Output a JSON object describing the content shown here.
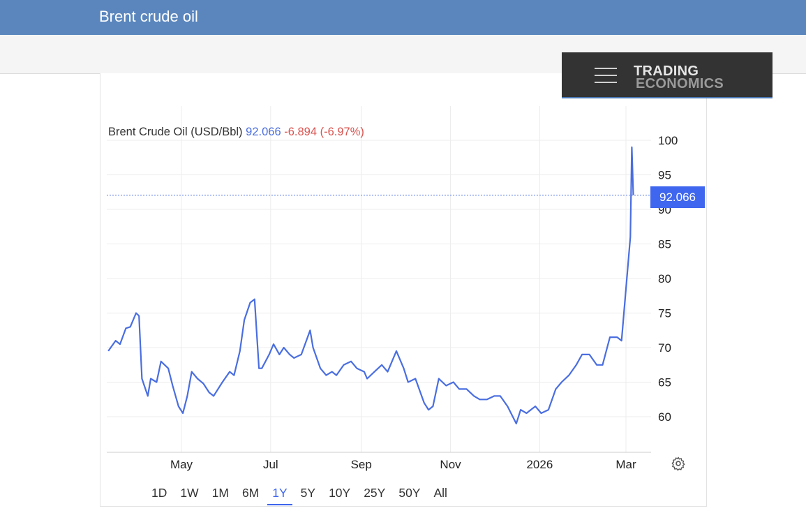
{
  "header": {
    "title": "Brent crude oil"
  },
  "logo": {
    "line1": "TRADING",
    "line2": "ECONOMICS"
  },
  "legend": {
    "name": "Brent Crude Oil (USD/Bbl)",
    "value": "92.066",
    "change": "-6.894 (-6.97%)"
  },
  "price_label": "92.066",
  "range_buttons": [
    "1D",
    "1W",
    "1M",
    "6M",
    "1Y",
    "5Y",
    "10Y",
    "25Y",
    "50Y",
    "All"
  ],
  "active_range": "1Y",
  "colors": {
    "line": "#4a6ee0",
    "accent": "#3f66ee",
    "change": "#d9534f",
    "header": "#5a86bd"
  },
  "chart_data": {
    "type": "line",
    "title": "Brent Crude Oil (USD/Bbl)",
    "xlabel": "",
    "ylabel": "",
    "x_ticks": [
      "May",
      "Jul",
      "Sep",
      "Nov",
      "2026",
      "Mar"
    ],
    "y_ticks": [
      60,
      65,
      70,
      75,
      80,
      85,
      90,
      95,
      100
    ],
    "ylim": [
      55,
      105
    ],
    "grid": true,
    "last_value": 92.066,
    "series": [
      {
        "name": "Brent Crude Oil (USD/Bbl)",
        "x": [
          "2025-03-12",
          "2025-03-17",
          "2025-03-20",
          "2025-03-24",
          "2025-03-27",
          "2025-03-31",
          "2025-04-02",
          "2025-04-03",
          "2025-04-04",
          "2025-04-08",
          "2025-04-10",
          "2025-04-14",
          "2025-04-17",
          "2025-04-22",
          "2025-04-25",
          "2025-04-29",
          "2025-05-02",
          "2025-05-05",
          "2025-05-08",
          "2025-05-12",
          "2025-05-16",
          "2025-05-20",
          "2025-05-23",
          "2025-05-29",
          "2025-06-03",
          "2025-06-06",
          "2025-06-10",
          "2025-06-13",
          "2025-06-17",
          "2025-06-20",
          "2025-06-23",
          "2025-06-25",
          "2025-06-30",
          "2025-07-03",
          "2025-07-07",
          "2025-07-10",
          "2025-07-14",
          "2025-07-17",
          "2025-07-22",
          "2025-07-28",
          "2025-07-30",
          "2025-08-04",
          "2025-08-08",
          "2025-08-12",
          "2025-08-15",
          "2025-08-20",
          "2025-08-25",
          "2025-08-29",
          "2025-09-03",
          "2025-09-05",
          "2025-09-10",
          "2025-09-15",
          "2025-09-19",
          "2025-09-25",
          "2025-09-30",
          "2025-10-03",
          "2025-10-08",
          "2025-10-14",
          "2025-10-17",
          "2025-10-20",
          "2025-10-24",
          "2025-10-29",
          "2025-11-03",
          "2025-11-07",
          "2025-11-12",
          "2025-11-17",
          "2025-11-21",
          "2025-11-26",
          "2025-12-01",
          "2025-12-05",
          "2025-12-10",
          "2025-12-16",
          "2025-12-19",
          "2025-12-23",
          "2025-12-29",
          "2026-01-02",
          "2026-01-07",
          "2026-01-12",
          "2026-01-16",
          "2026-01-21",
          "2026-01-26",
          "2026-01-30",
          "2026-02-04",
          "2026-02-09",
          "2026-02-13",
          "2026-02-18",
          "2026-02-23",
          "2026-02-26",
          "2026-03-02",
          "2026-03-04",
          "2026-03-05",
          "2026-03-06"
        ],
        "values": [
          69.5,
          71.0,
          70.5,
          72.8,
          73.0,
          75.0,
          74.6,
          70.0,
          65.5,
          63.0,
          65.5,
          65.0,
          68.0,
          67.0,
          64.5,
          61.5,
          60.5,
          63.0,
          66.5,
          65.5,
          64.8,
          63.5,
          63.0,
          65.0,
          66.5,
          66.0,
          69.5,
          74.0,
          76.5,
          77.0,
          67.0,
          67.0,
          69.0,
          70.5,
          69.0,
          70.0,
          69.0,
          68.5,
          69.0,
          72.5,
          70.0,
          67.0,
          66.0,
          66.5,
          66.0,
          67.5,
          68.0,
          67.0,
          66.5,
          65.5,
          66.5,
          67.5,
          66.5,
          69.5,
          67.0,
          65.0,
          65.5,
          62.0,
          61.0,
          61.5,
          65.5,
          64.5,
          65.0,
          64.0,
          64.0,
          63.0,
          62.5,
          62.5,
          63.0,
          63.0,
          61.5,
          59.0,
          61.0,
          60.5,
          61.5,
          60.5,
          61.0,
          64.0,
          65.0,
          66.0,
          67.5,
          69.0,
          69.0,
          67.5,
          67.5,
          71.5,
          71.5,
          71.0,
          81.0,
          86.0,
          99.0,
          92.066
        ]
      }
    ]
  }
}
